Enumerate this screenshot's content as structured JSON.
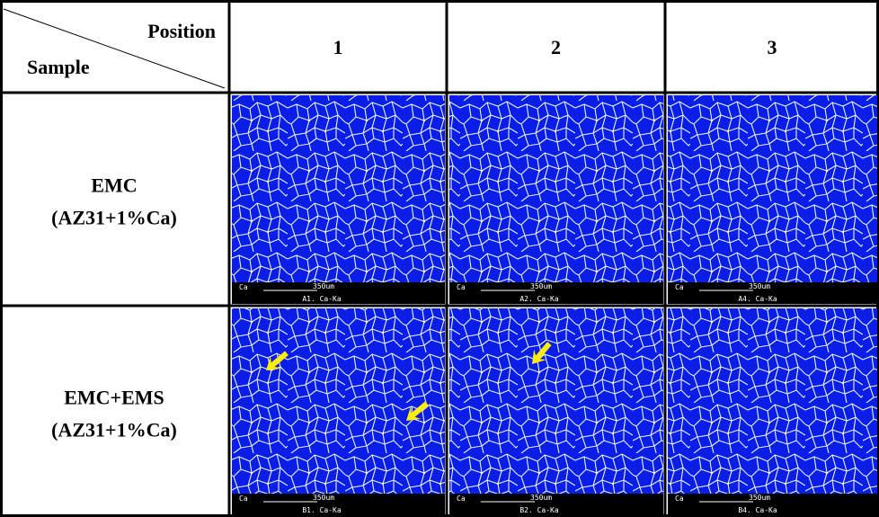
{
  "table": {
    "corner": {
      "column_header": "Position",
      "row_header": "Sample"
    },
    "columns": [
      "1",
      "2",
      "3"
    ],
    "rows": [
      {
        "label": [
          "EMC",
          "(AZ31+1%Ca)"
        ],
        "images": [
          {
            "element": "Ca",
            "scale": "350um",
            "caption": "A1. Ca-Ka"
          },
          {
            "element": "Ca",
            "scale": "350um",
            "caption": "A2. Ca-Ka"
          },
          {
            "element": "Ca",
            "scale": "350um",
            "caption": "A4. Ca-Ka"
          }
        ]
      },
      {
        "label": [
          "EMC+EMS",
          "(AZ31+1%Ca)"
        ],
        "images": [
          {
            "element": "Ca",
            "scale": "350um",
            "caption": "B1. Ca-Ka"
          },
          {
            "element": "Ca",
            "scale": "350um",
            "caption": "B2. Ca-Ka"
          },
          {
            "element": "Ca",
            "scale": "350um",
            "caption": "B4. Ca-Ka"
          }
        ]
      }
    ]
  }
}
